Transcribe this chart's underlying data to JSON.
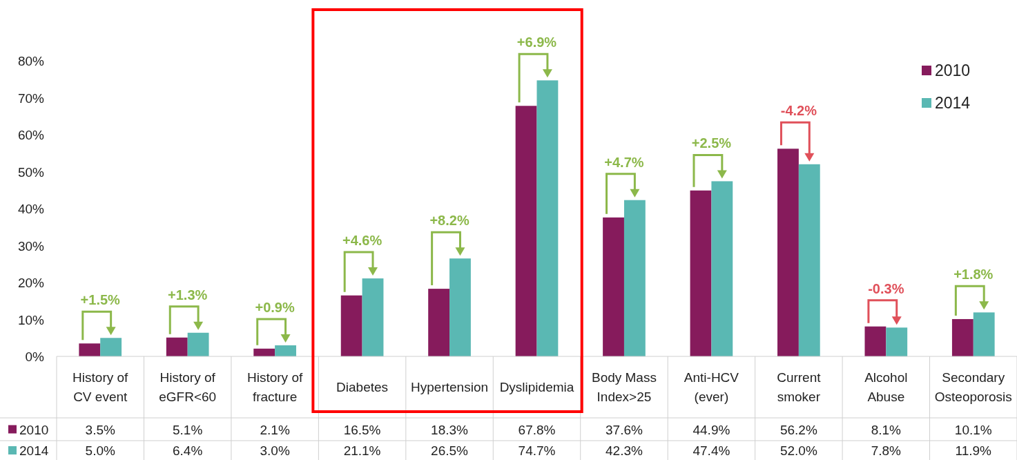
{
  "chart_data": {
    "type": "bar",
    "categories": [
      "History of CV event",
      "History of eGFR<60",
      "History of fracture",
      "Diabetes",
      "Hypertension",
      "Dyslipidemia",
      "Body Mass Index>25",
      "Anti-HCV (ever)",
      "Current smoker",
      "Alcohol Abuse",
      "Secondary Osteoporosis"
    ],
    "series": [
      {
        "name": "2010",
        "color": "#861b5c",
        "values": [
          3.5,
          5.1,
          2.1,
          16.5,
          18.3,
          67.8,
          37.6,
          44.9,
          56.2,
          8.1,
          10.1
        ]
      },
      {
        "name": "2014",
        "color": "#5ab8b3",
        "values": [
          5.0,
          6.4,
          3.0,
          21.1,
          26.5,
          74.7,
          42.3,
          47.4,
          52.0,
          7.8,
          11.9
        ]
      }
    ],
    "ylim": [
      0,
      80
    ],
    "yticks": [
      {
        "value": 0,
        "label": "0%"
      },
      {
        "value": 10,
        "label": "10%"
      },
      {
        "value": 20,
        "label": "20%"
      },
      {
        "value": 30,
        "label": "30%"
      },
      {
        "value": 40,
        "label": "40%"
      },
      {
        "value": 50,
        "label": "50%"
      },
      {
        "value": 60,
        "label": "60%"
      },
      {
        "value": 70,
        "label": "70%"
      },
      {
        "value": 80,
        "label": "80%"
      }
    ],
    "value_labels": [
      [
        "3.5%",
        "5.1%",
        "2.1%",
        "16.5%",
        "18.3%",
        "67.8%",
        "37.6%",
        "44.9%",
        "56.2%",
        "8.1%",
        "10.1%"
      ],
      [
        "5.0%",
        "6.4%",
        "3.0%",
        "21.1%",
        "26.5%",
        "74.7%",
        "42.3%",
        "47.4%",
        "52.0%",
        "7.8%",
        "11.9%"
      ]
    ],
    "annotations": [
      {
        "text": "+1.5%",
        "x": "History of CV event",
        "y": 5.0
      },
      {
        "text": "+1.3%",
        "x": "History of eGFR<60",
        "y": 6.4
      },
      {
        "text": "+0.9%",
        "x": "History of fracture",
        "y": 3.0
      },
      {
        "text": "+4.6%",
        "x": "Diabetes",
        "y": 21.1
      },
      {
        "text": "+8.2%",
        "x": "Hypertension",
        "y": 26.5
      },
      {
        "text": "+6.9%",
        "x": "Dyslipidemia",
        "y": 74.7
      },
      {
        "text": "+4.7%",
        "x": "Body Mass Index>25",
        "y": 42.3
      },
      {
        "text": "+2.5%",
        "x": "Anti-HCV (ever)",
        "y": 47.4
      },
      {
        "text": "-4.2%",
        "x": "Current smoker",
        "y": 56.2
      },
      {
        "text": "-0.3%",
        "x": "Alcohol Abuse",
        "y": 8.1
      },
      {
        "text": "+1.8%",
        "x": "Secondary Osteoporosis",
        "y": 11.9
      }
    ],
    "legend": "top right",
    "grid": false
  }
}
